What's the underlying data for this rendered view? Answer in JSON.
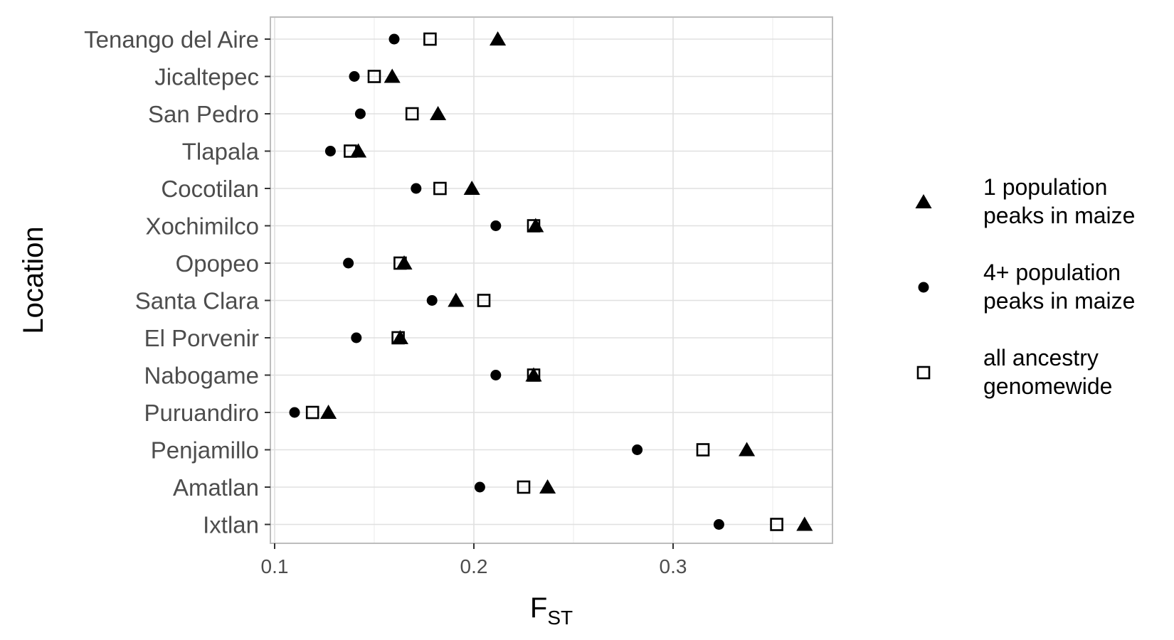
{
  "chart_data": {
    "type": "scatter",
    "categories": [
      "Tenango del Aire",
      "Jicaltepec",
      "San Pedro",
      "Tlapala",
      "Cocotilan",
      "Xochimilco",
      "Opopeo",
      "Santa Clara",
      "El Porvenir",
      "Nabogame",
      "Puruandiro",
      "Penjamillo",
      "Amatlan",
      "Ixtlan"
    ],
    "series": [
      {
        "name": "1 population peaks in maize",
        "marker": "triangle",
        "values": [
          0.212,
          0.159,
          0.182,
          0.142,
          0.199,
          0.231,
          0.165,
          0.191,
          0.163,
          0.23,
          0.127,
          0.337,
          0.237,
          0.366
        ]
      },
      {
        "name": "4+ population peaks in maize",
        "marker": "circle",
        "values": [
          0.16,
          0.14,
          0.143,
          0.128,
          0.171,
          0.211,
          0.137,
          0.179,
          0.141,
          0.211,
          0.11,
          0.282,
          0.203,
          0.323
        ]
      },
      {
        "name": "all ancestry genomewide",
        "marker": "open-square",
        "values": [
          0.178,
          0.15,
          0.169,
          0.138,
          0.183,
          0.23,
          0.163,
          0.205,
          0.162,
          0.23,
          0.119,
          0.315,
          0.225,
          0.352
        ]
      }
    ],
    "xlim": [
      0.1,
      0.38
    ],
    "xticks": [
      0.1,
      0.2,
      0.3
    ],
    "xtick_labels": [
      "0.1",
      "0.2",
      "0.3"
    ],
    "xlabel_main": "F",
    "xlabel_sub": "ST",
    "ylabel": "Location",
    "legend": {
      "placement": "right",
      "items": [
        {
          "marker": "triangle",
          "line1": "1 population",
          "line2": "peaks in maize"
        },
        {
          "marker": "circle",
          "line1": "4+ population",
          "line2": "peaks in maize"
        },
        {
          "marker": "open-square",
          "line1": "all ancestry",
          "line2": "genomewide"
        }
      ]
    },
    "grid": true,
    "colors": {
      "marker": "#000000",
      "grid": "#e0e0e0",
      "border": "#bdbdbd",
      "tick_text": "#4d4d4d"
    }
  }
}
